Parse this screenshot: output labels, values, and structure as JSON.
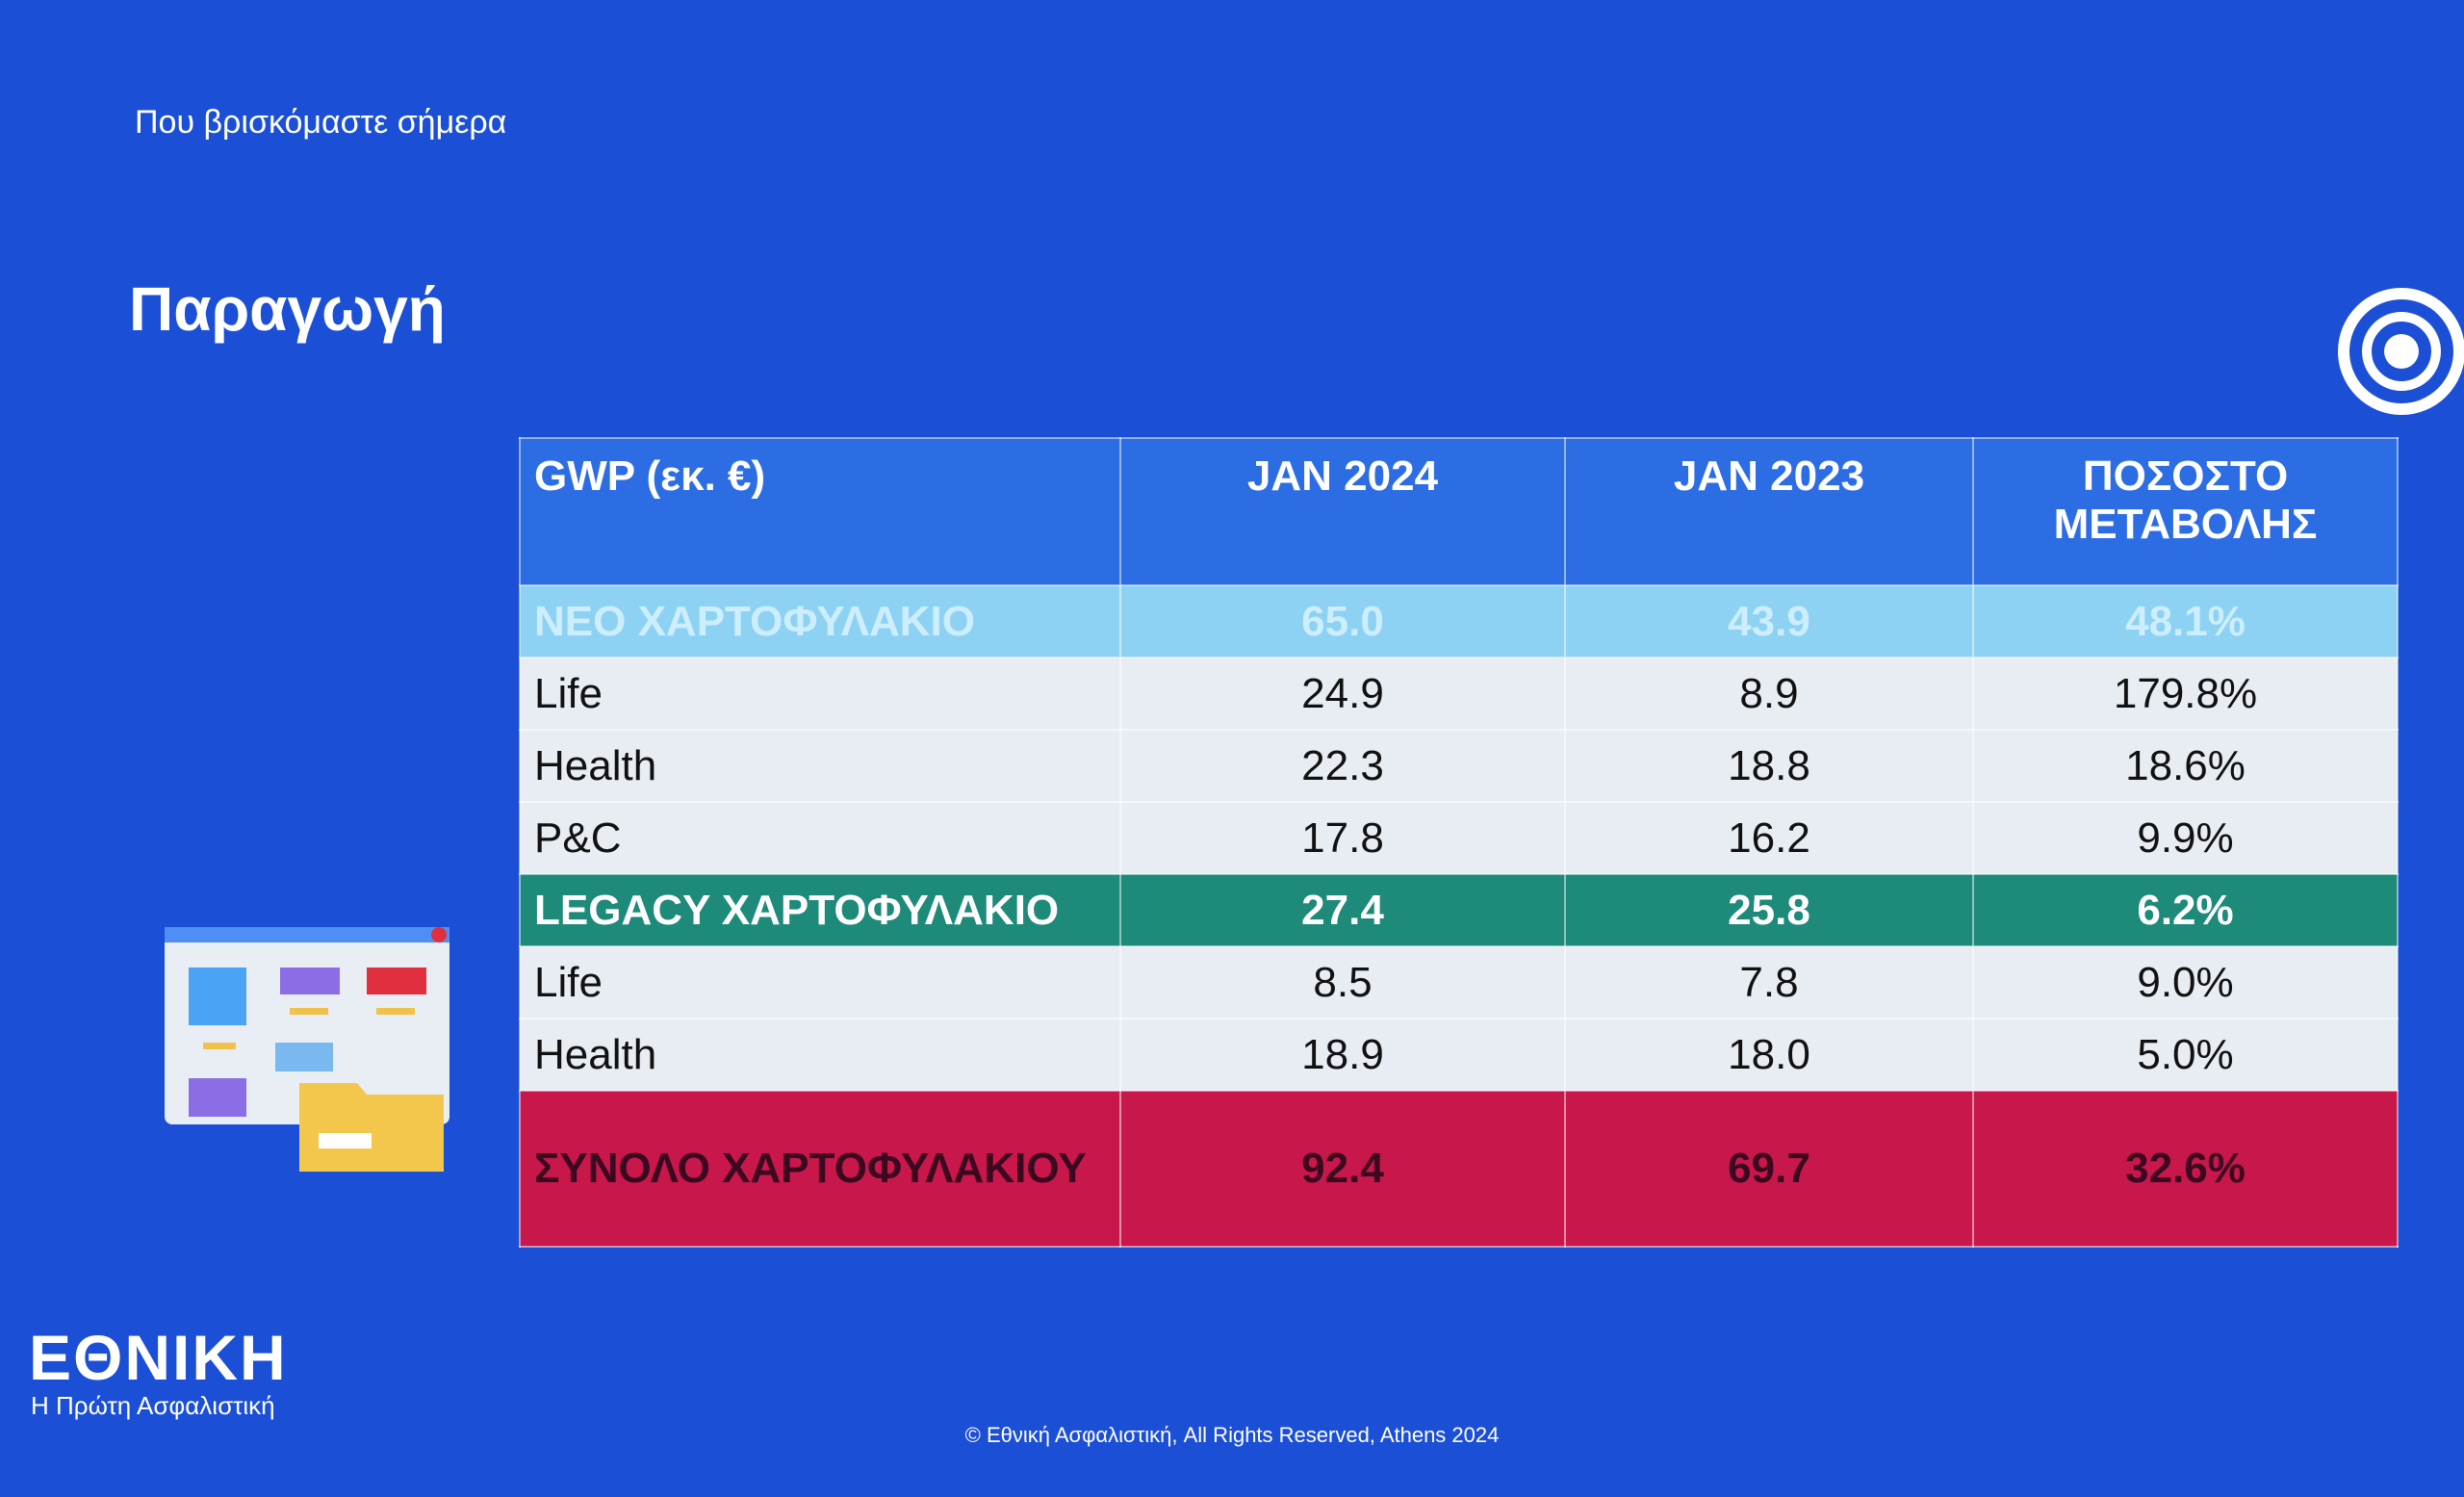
{
  "slide": {
    "subtitle": "Που βρισκόμαστε σήμερα",
    "title": "Παραγωγή",
    "footer": "© Εθνική Ασφαλιστική, All Rights Reserved, Athens 2024",
    "logo": {
      "name": "ΕΘΝΙΚΗ",
      "tagline": "Η Πρώτη Ασφαλιστική"
    }
  },
  "table": {
    "header": [
      "GWP (εκ. €)",
      "JAN 2024",
      "JAN 2023",
      "ΠΟΣΟΣΤΟ ΜΕΤΑΒΟΛΗΣ"
    ],
    "rows": [
      [
        "ΝΕΟ ΧΑΡΤΟΦΥΛΑΚΙΟ",
        "65.0",
        "43.9",
        "48.1%"
      ],
      [
        "Life",
        "24.9",
        "8.9",
        "179.8%"
      ],
      [
        "Health",
        "22.3",
        "18.8",
        "18.6%"
      ],
      [
        "P&C",
        "17.8",
        "16.2",
        "9.9%"
      ],
      [
        "LEGACY ΧΑΡΤΟΦΥΛΑΚΙΟ",
        "27.4",
        "25.8",
        "6.2%"
      ],
      [
        "Life",
        "8.5",
        "7.8",
        "9.0%"
      ],
      [
        "Health",
        "18.9",
        "18.0",
        "5.0%"
      ],
      [
        "ΣΥΝΟΛΟ ΧΑΡΤΟΦΥΛΑΚΙΟΥ",
        "92.4",
        "69.7",
        "32.6%"
      ]
    ]
  }
}
